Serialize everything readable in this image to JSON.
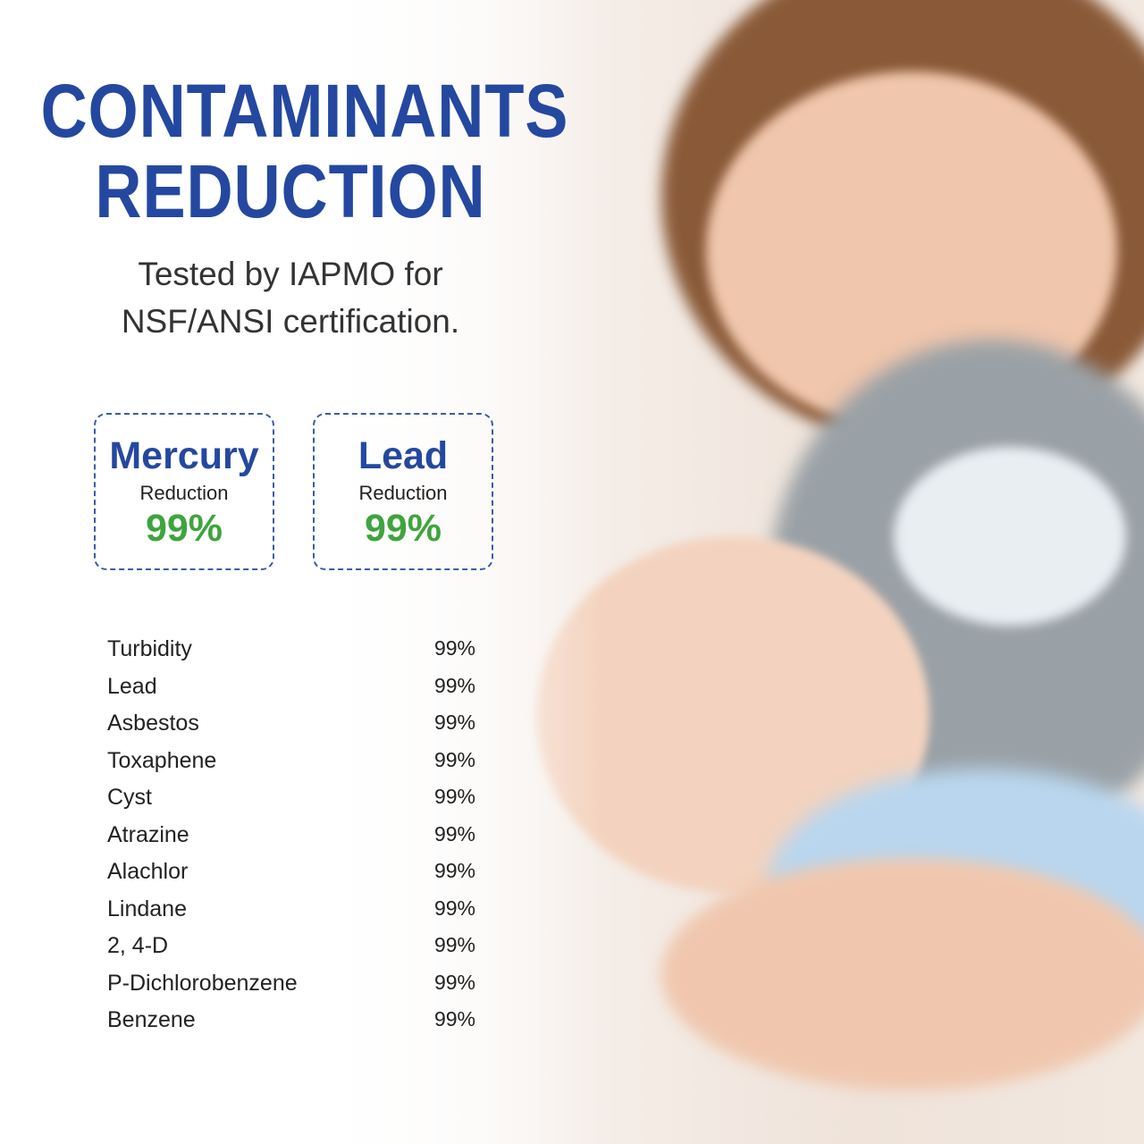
{
  "header": {
    "title_line1": "CONTAMINANTS",
    "title_line2": "REDUCTION",
    "subtitle_line1": "Tested by IAPMO for",
    "subtitle_line2": "NSF/ANSI certification."
  },
  "highlights": [
    {
      "name": "Mercury",
      "label": "Reduction",
      "value": "99%"
    },
    {
      "name": "Lead",
      "label": "Reduction",
      "value": "99%"
    }
  ],
  "contaminants": [
    {
      "name": "Turbidity",
      "value": "99%"
    },
    {
      "name": "Lead",
      "value": "99%"
    },
    {
      "name": "Asbestos",
      "value": "99%"
    },
    {
      "name": "Toxaphene",
      "value": "99%"
    },
    {
      "name": "Cyst",
      "value": "99%"
    },
    {
      "name": "Atrazine",
      "value": "99%"
    },
    {
      "name": "Alachlor",
      "value": "99%"
    },
    {
      "name": "Lindane",
      "value": "99%"
    },
    {
      "name": "2, 4-D",
      "value": "99%"
    },
    {
      "name": "P-Dichlorobenzene",
      "value": "99%"
    },
    {
      "name": "Benzene",
      "value": "99%"
    }
  ],
  "colors": {
    "title": "#2448a0",
    "accent_green": "#3fa43d",
    "border": "#3a5cab"
  }
}
